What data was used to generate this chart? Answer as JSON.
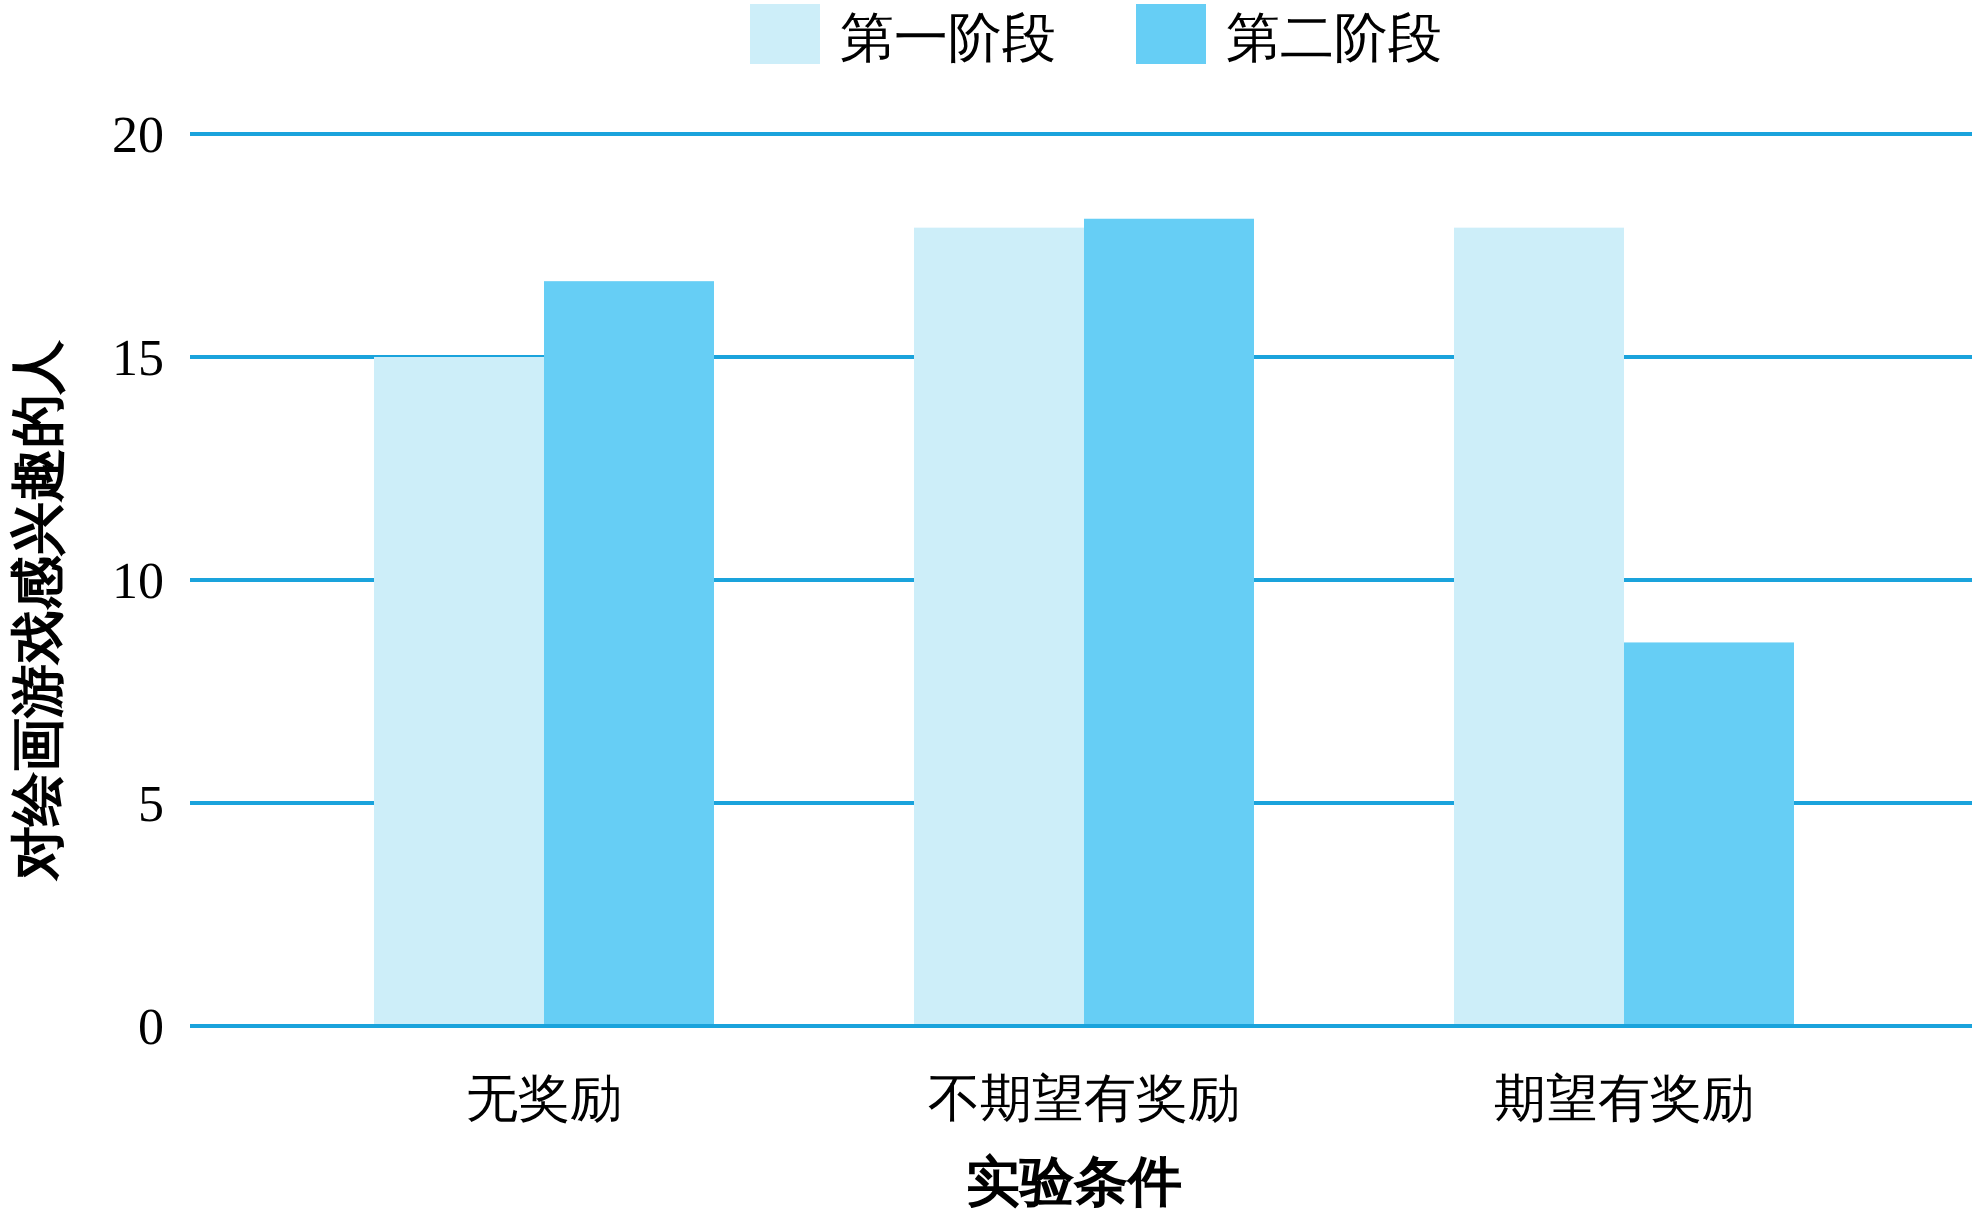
{
  "chart_data": {
    "type": "bar",
    "xlabel": "实验条件",
    "ylabel": "对绘画游戏感兴趣的人",
    "categories": [
      "无奖励",
      "不期望有奖励",
      "期望有奖励"
    ],
    "series": [
      {
        "name": "第一阶段",
        "color": "#cdeef9",
        "values": [
          15.0,
          17.9,
          17.9
        ]
      },
      {
        "name": "第二阶段",
        "color": "#66cef5",
        "values": [
          16.7,
          18.1,
          8.6
        ]
      }
    ],
    "ylim": [
      0,
      20
    ],
    "yticks": [
      0,
      5,
      10,
      15,
      20
    ],
    "grid": "y",
    "legend": "top"
  }
}
